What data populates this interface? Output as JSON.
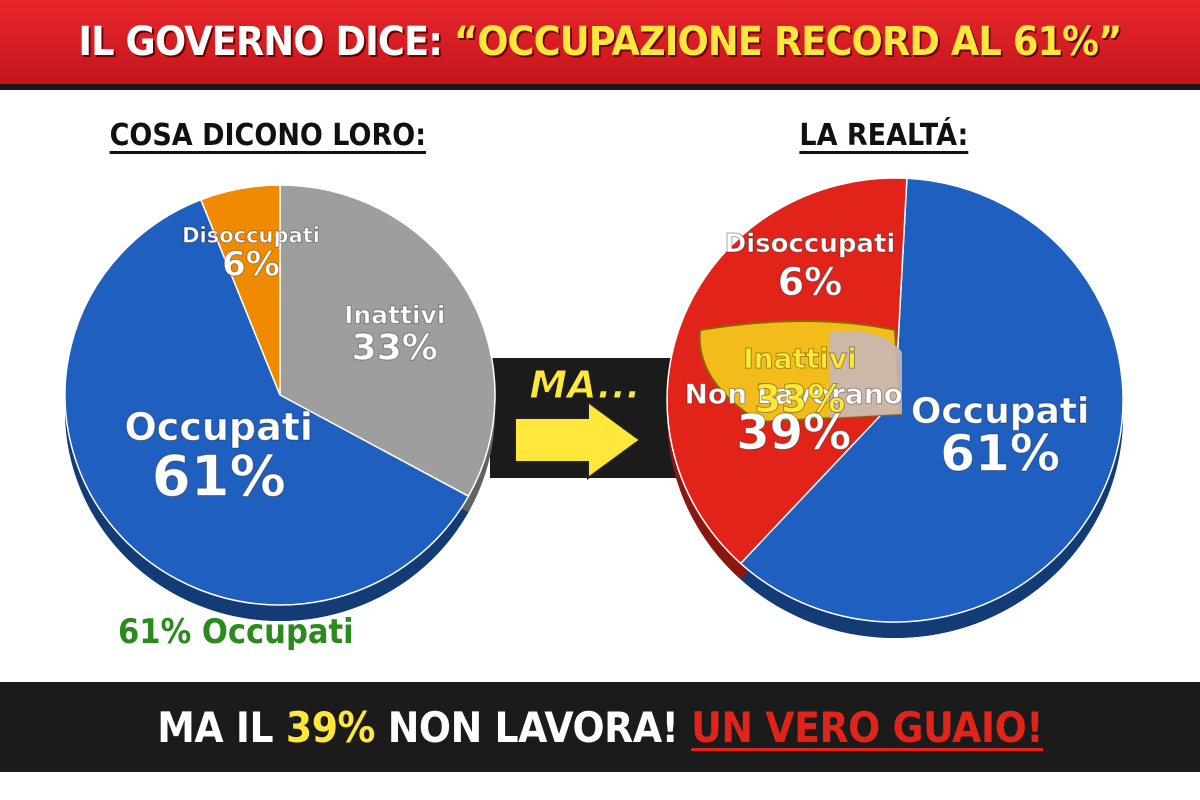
{
  "header": {
    "title_prefix": "IL GOVERNO DICE: ",
    "title_highlight": "“OCCUPAZIONE RECORD AL 61%”"
  },
  "left": {
    "heading": "COSA DICONO LORO:",
    "footer": "61% Occupati"
  },
  "right": {
    "heading": "LA REALTÁ:"
  },
  "arrow": {
    "label": "MA..."
  },
  "footer": {
    "part1": "MA IL ",
    "highlight": "39%",
    "part2": " NON LAVORA! ",
    "alert": "UN VERO GUAIO!"
  },
  "colors": {
    "occupati": "#1f5fbf",
    "disoccupati": "#f08a00",
    "inattivi": "#9e9e9e",
    "non_lavorano": "#e2231a",
    "inattivi_highlight": "#f3c51c"
  },
  "chart_data": [
    {
      "type": "pie",
      "title": "COSA DICONO LORO:",
      "slices": [
        {
          "label": "Occupati",
          "value": 61,
          "value_label": "61%",
          "color": "#1f5fbf"
        },
        {
          "label": "Disoccupati",
          "value": 6,
          "value_label": "6%",
          "color": "#f08a00"
        },
        {
          "label": "Inattivi",
          "value": 33,
          "value_label": "33%",
          "color": "#9e9e9e"
        }
      ]
    },
    {
      "type": "pie",
      "title": "LA REALTÁ:",
      "slices": [
        {
          "label": "Occupati",
          "value": 61,
          "value_label": "61%",
          "color": "#1f5fbf"
        },
        {
          "label": "Non Lavorano",
          "value": 39,
          "value_label": "39%",
          "color": "#e2231a"
        }
      ],
      "annotations": [
        {
          "label": "Disoccupati",
          "value_label": "6%"
        },
        {
          "label": "Inattivi",
          "value_label": "33%"
        }
      ]
    }
  ]
}
